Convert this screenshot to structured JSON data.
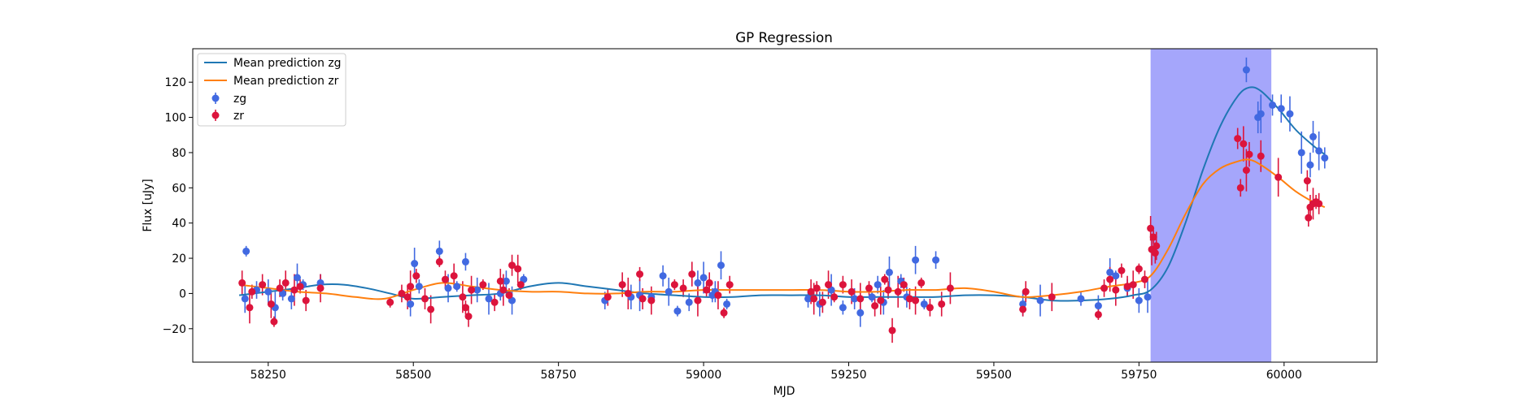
{
  "chart_data": {
    "type": "scatter",
    "title": "GP Regression",
    "xlabel": "MJD",
    "ylabel": "Flux [uJy]",
    "xlim": [
      58120,
      60160
    ],
    "ylim": [
      -39,
      139
    ],
    "xticks": [
      58250,
      58500,
      58750,
      59000,
      59250,
      59500,
      59750,
      60000
    ],
    "yticks": [
      -20,
      0,
      20,
      40,
      60,
      80,
      100,
      120
    ],
    "xtick_labels": [
      "58250",
      "58500",
      "58750",
      "59000",
      "59250",
      "59500",
      "59750",
      "60000"
    ],
    "ytick_labels": [
      "−20",
      "0",
      "20",
      "40",
      "60",
      "80",
      "100",
      "120"
    ],
    "grid": false,
    "legend_position": "top-left",
    "shaded_region": {
      "x_start": 59770,
      "x_end": 59978,
      "color": "#a5a6fb"
    },
    "colors": {
      "zg_line": "#1f77b4",
      "zr_line": "#ff7f0e",
      "zg_points": "#4169e1",
      "zr_points": "#dc143c"
    },
    "legend": [
      "Mean prediction zg",
      "Mean prediction zr",
      "zg",
      "zr"
    ],
    "series": [
      {
        "name": "Mean prediction zg",
        "kind": "line",
        "x": [
          58200,
          58250,
          58300,
          58340,
          58380,
          58420,
          58460,
          58500,
          58550,
          58600,
          58650,
          58700,
          58750,
          58800,
          58850,
          58900,
          58950,
          59000,
          59050,
          59100,
          59150,
          59200,
          59250,
          59300,
          59350,
          59400,
          59450,
          59500,
          59550,
          59600,
          59650,
          59700,
          59740,
          59770,
          59800,
          59830,
          59860,
          59890,
          59920,
          59940,
          59960,
          59990,
          60020,
          60050,
          60070
        ],
        "y": [
          -1,
          1,
          3,
          5,
          5,
          3,
          0,
          -3,
          -2,
          -1,
          0,
          4,
          6,
          4,
          2,
          0,
          -1,
          -2,
          -2,
          -1,
          -1,
          -1,
          -2,
          -2,
          -2,
          -2,
          -1,
          -1,
          -2,
          -4,
          -4,
          -3,
          -1,
          2,
          15,
          40,
          70,
          95,
          112,
          117,
          115,
          105,
          93,
          84,
          79
        ]
      },
      {
        "name": "Mean prediction zr",
        "kind": "line",
        "x": [
          58200,
          58250,
          58300,
          58350,
          58400,
          58450,
          58500,
          58550,
          58600,
          58650,
          58700,
          58750,
          58800,
          58850,
          58900,
          58950,
          59000,
          59050,
          59100,
          59150,
          59200,
          59250,
          59300,
          59350,
          59400,
          59450,
          59500,
          59550,
          59600,
          59650,
          59700,
          59740,
          59770,
          59800,
          59830,
          59860,
          59890,
          59920,
          59940,
          59960,
          59990,
          60020,
          60050,
          60070
        ],
        "y": [
          5,
          3,
          1,
          0,
          -2,
          -3,
          2,
          6,
          4,
          2,
          1,
          1,
          0,
          0,
          1,
          1,
          2,
          2,
          2,
          2,
          2,
          1,
          1,
          2,
          2,
          3,
          1,
          -2,
          -1,
          1,
          4,
          6,
          10,
          25,
          45,
          62,
          71,
          75,
          76,
          73,
          66,
          58,
          52,
          49
        ]
      },
      {
        "name": "zg",
        "kind": "errorbar",
        "x": [
          58210,
          58212,
          58230,
          58250,
          58262,
          58275,
          58290,
          58300,
          58310,
          58340,
          58495,
          58502,
          58510,
          58545,
          58560,
          58575,
          58590,
          58610,
          58630,
          58650,
          58660,
          58670,
          58690,
          58830,
          58875,
          58890,
          58910,
          58930,
          58940,
          58955,
          58975,
          58990,
          59000,
          59015,
          59020,
          59030,
          59040,
          59180,
          59200,
          59220,
          59240,
          59260,
          59270,
          59290,
          59300,
          59310,
          59320,
          59340,
          59350,
          59365,
          59380,
          59400,
          59550,
          59580,
          59650,
          59680,
          59700,
          59710,
          59730,
          59750,
          59765,
          59935,
          59955,
          59960,
          59980,
          59995,
          60010,
          60030,
          60045,
          60050,
          60060,
          60070
        ],
        "y": [
          -3,
          24,
          2,
          1,
          -8,
          0,
          -3,
          9,
          5,
          6,
          -6,
          17,
          4,
          24,
          3,
          4,
          18,
          2,
          -3,
          0,
          7,
          -4,
          8,
          -4,
          -2,
          -1,
          -2,
          10,
          1,
          -10,
          -5,
          6,
          9,
          -1,
          1,
          16,
          -6,
          -3,
          -6,
          2,
          -8,
          -3,
          -11,
          -2,
          5,
          -5,
          12,
          7,
          -2,
          19,
          -6,
          19,
          -6,
          -4,
          -3,
          -7,
          12,
          10,
          3,
          -4,
          -2,
          127,
          100,
          102,
          107,
          105,
          102,
          80,
          73,
          89,
          81,
          77
        ]
      },
      {
        "name": "zr",
        "kind": "errorbar",
        "x": [
          58205,
          58218,
          58222,
          58240,
          58255,
          58260,
          58270,
          58280,
          58295,
          58305,
          58315,
          58340,
          58460,
          58480,
          58490,
          58495,
          58505,
          58520,
          58530,
          58545,
          58555,
          58570,
          58585,
          58590,
          58595,
          58600,
          58620,
          58640,
          58650,
          58655,
          58665,
          58670,
          58680,
          58685,
          58835,
          58860,
          58870,
          58890,
          58895,
          58910,
          58950,
          58965,
          58980,
          58990,
          59005,
          59010,
          59025,
          59035,
          59045,
          59185,
          59190,
          59195,
          59205,
          59215,
          59225,
          59240,
          59255,
          59270,
          59285,
          59295,
          59305,
          59312,
          59318,
          59325,
          59335,
          59345,
          59355,
          59365,
          59375,
          59390,
          59410,
          59425,
          59550,
          59555,
          59600,
          59680,
          59690,
          59700,
          59710,
          59720,
          59730,
          59740,
          59750,
          59760,
          59770,
          59772,
          59775,
          59778,
          59780,
          59920,
          59925,
          59930,
          59935,
          59940,
          59960,
          59990,
          60040,
          60042,
          60045,
          60050,
          60055,
          60060
        ],
        "y": [
          6,
          -8,
          1,
          5,
          -6,
          -16,
          3,
          6,
          2,
          4,
          -4,
          3,
          -5,
          0,
          -2,
          4,
          10,
          -3,
          -9,
          18,
          8,
          10,
          -2,
          -8,
          -13,
          2,
          5,
          -5,
          7,
          2,
          -1,
          16,
          14,
          5,
          -2,
          5,
          0,
          11,
          -3,
          -4,
          5,
          3,
          11,
          -4,
          2,
          6,
          -1,
          -11,
          5,
          1,
          -3,
          3,
          -5,
          5,
          -2,
          5,
          1,
          -3,
          3,
          -7,
          -4,
          8,
          2,
          -21,
          1,
          5,
          -3,
          -4,
          6,
          -8,
          -6,
          3,
          -9,
          1,
          -2,
          -12,
          3,
          8,
          2,
          13,
          4,
          5,
          14,
          8,
          37,
          25,
          32,
          23,
          27,
          88,
          60,
          85,
          70,
          79,
          78,
          66,
          64,
          43,
          49,
          51,
          52,
          51
        ]
      }
    ]
  }
}
